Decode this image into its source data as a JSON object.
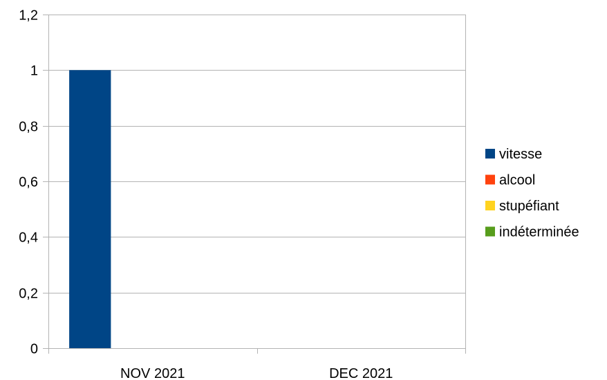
{
  "chart_data": {
    "type": "bar",
    "categories": [
      "NOV 2021",
      "DEC 2021"
    ],
    "series": [
      {
        "name": "vitesse",
        "color": "#004586",
        "values": [
          1,
          0
        ]
      },
      {
        "name": "alcool",
        "color": "#ff420e",
        "values": [
          0,
          0
        ]
      },
      {
        "name": "stupéfiant",
        "color": "#ffd320",
        "values": [
          0,
          0
        ]
      },
      {
        "name": "indéterminée",
        "color": "#579d1c",
        "values": [
          0,
          0
        ]
      }
    ],
    "y_ticks": [
      "0",
      "0,2",
      "0,4",
      "0,6",
      "0,8",
      "1",
      "1,2"
    ],
    "ylim": [
      0,
      1.2
    ],
    "y_step": 0.2,
    "grid": true,
    "legend_position": "right"
  }
}
